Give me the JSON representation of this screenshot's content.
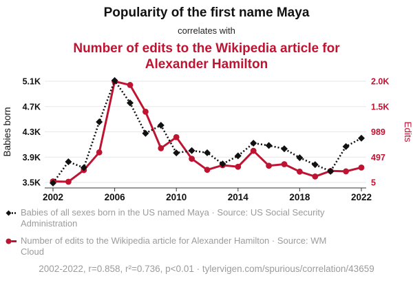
{
  "header": {
    "title_top": "Popularity of the first name Maya",
    "connector": "correlates with",
    "title_bottom": "Number of edits to the Wikipedia article for Alexander Hamilton"
  },
  "chart_data": {
    "type": "line",
    "x": [
      2002,
      2003,
      2004,
      2005,
      2006,
      2007,
      2008,
      2009,
      2010,
      2011,
      2012,
      2013,
      2014,
      2015,
      2016,
      2017,
      2018,
      2019,
      2020,
      2021,
      2022
    ],
    "series": [
      {
        "name": "Babies of all sexes born in the US named Maya",
        "axis": "left",
        "style": "dashed-diamond",
        "color": "#111111",
        "values": [
          3491,
          3827,
          3733,
          4457,
          5111,
          4757,
          4276,
          4404,
          3967,
          4003,
          3970,
          3792,
          3920,
          4121,
          4083,
          4032,
          3891,
          3781,
          3676,
          4068,
          4200
        ]
      },
      {
        "name": "Number of edits to the Wikipedia article for Alexander Hamilton",
        "axis": "right",
        "style": "solid-circle",
        "color": "#be1432",
        "values": [
          25,
          18,
          245,
          590,
          1970,
          1900,
          1380,
          670,
          885,
          465,
          250,
          340,
          310,
          620,
          330,
          360,
          215,
          120,
          228,
          220,
          295
        ]
      }
    ],
    "left_axis": {
      "label": "Babies born",
      "ticks": [
        "3.5K",
        "3.9K",
        "4.3K",
        "4.7K",
        "5.1K"
      ],
      "tick_values": [
        3500,
        3900,
        4300,
        4700,
        5100
      ],
      "range": [
        3500,
        5100
      ]
    },
    "right_axis": {
      "label": "Edits",
      "ticks": [
        "5",
        "497",
        "989",
        "1.5K",
        "2.0K"
      ],
      "tick_values": [
        5,
        497,
        989,
        1481,
        1973
      ],
      "range": [
        5,
        1973
      ]
    },
    "x_axis": {
      "ticks": [
        2002,
        2006,
        2010,
        2014,
        2018,
        2022
      ]
    },
    "grid": true,
    "legend_position": "bottom"
  },
  "legend": [
    {
      "marker": "black-diamond-dashed",
      "label": "Babies of all sexes born in the US named Maya · Source: US Social Security Administration"
    },
    {
      "marker": "red-circle-solid",
      "label": "Number of edits to the Wikipedia article for Alexander Hamilton · Source: WM Cloud"
    }
  ],
  "footer": {
    "text": "2002-2022, r=0.858, r²=0.736, p<0.01 · tylervigen.com/spurious/correlation/43659"
  },
  "colors": {
    "accent_red": "#be1432",
    "series_black": "#111111",
    "grid": "#e7e7e7",
    "axis": "#333333",
    "muted_text": "#9b9b9b"
  }
}
